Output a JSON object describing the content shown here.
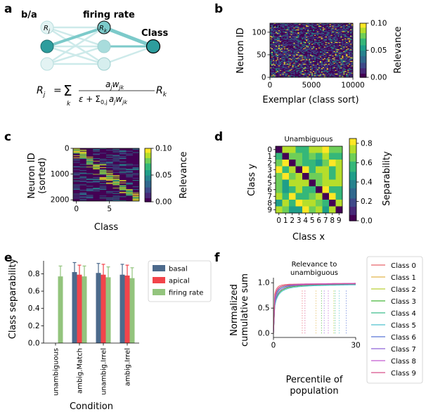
{
  "colors": {
    "basal": "#4c6a8c",
    "apical": "#f2444b",
    "firing": "#93c47d",
    "teal_dark": "#2d9d9d",
    "teal_mid": "#7ccaca",
    "teal_light": "#cdeaea",
    "viridis": [
      "#440154",
      "#482878",
      "#3e4989",
      "#31688e",
      "#26828e",
      "#1f9e89",
      "#35b779",
      "#6ece58",
      "#b5de2b",
      "#fde725"
    ]
  },
  "panel_labels": {
    "a": "a",
    "b": "b",
    "c": "c",
    "d": "d",
    "e": "e",
    "f": "f"
  },
  "diagram": {
    "layer_basal_label": "b/a",
    "layer_rate_label": "firing rate",
    "class_label": "Class",
    "node_rj": "R",
    "node_rj_sub": "j",
    "node_rk": "R",
    "node_rk_sub": "k",
    "equation": {
      "lhs": "R",
      "lhs_sub": "j",
      "eq": "=",
      "sum": "Σ",
      "sum_sub": "k",
      "numerator": "a",
      "numerator_sub": "j",
      "numerator_w": "w",
      "numerator_w_sub": "jk",
      "denominator_eps": "ε +",
      "denominator_sum": "Σ",
      "denominator_sum_sub": "0,j",
      "denominator_a": "a",
      "denominator_a_sub": "j",
      "denominator_w": "w",
      "denominator_w_sub": "jk",
      "rhs": "R",
      "rhs_sub": "k"
    }
  },
  "chart_data": [
    {
      "id": "b",
      "type": "heatmap",
      "title": "",
      "xlabel": "Exemplar (class sort)",
      "ylabel": "Neuron ID",
      "xlim": [
        0,
        10000
      ],
      "ylim": [
        0,
        120
      ],
      "xticks": [
        "0",
        "5000",
        "10000"
      ],
      "yticks": [
        "0",
        "50",
        "100"
      ],
      "ytick_values": [
        0,
        50,
        100
      ],
      "top_note": "...",
      "colorbar": {
        "label": "Relevance",
        "min": 0.0,
        "max": 0.1,
        "ticks": [
          "0.00",
          "0.05",
          "0.10"
        ]
      }
    },
    {
      "id": "c",
      "type": "heatmap",
      "xlabel": "Class",
      "ylabel": "Neuron ID",
      "ylabel2": "(sorted)",
      "xlim": [
        -0.5,
        9.5
      ],
      "ylim": [
        0,
        2048
      ],
      "xticks": [
        "0",
        "5"
      ],
      "xtick_values": [
        0,
        5
      ],
      "yticks": [
        "0",
        "1000",
        "2000"
      ],
      "ytick_values": [
        0,
        1000,
        2000
      ],
      "colorbar": {
        "label": "Relevance",
        "min": 0.0,
        "max": 0.1,
        "ticks": [
          "0.00",
          "0.05",
          "0.10"
        ]
      }
    },
    {
      "id": "d",
      "type": "heatmap",
      "title": "Unambiguous",
      "xlabel": "Class x",
      "ylabel": "Class y",
      "categories": [
        "0",
        "1",
        "2",
        "3",
        "4",
        "5",
        "6",
        "7",
        "8",
        "9"
      ],
      "colorbar": {
        "label": "Separability",
        "min": 0.0,
        "max": 0.85,
        "ticks": [
          "0.0",
          "0.2",
          "0.4",
          "0.6",
          "0.8"
        ],
        "tick_values": [
          0,
          0.2,
          0.4,
          0.6,
          0.8
        ]
      }
    },
    {
      "id": "e",
      "type": "bar",
      "xlabel": "Condition",
      "ylabel": "Class separability",
      "ylim": [
        0,
        0.95
      ],
      "yticks": [
        "0.0",
        "0.2",
        "0.4",
        "0.6",
        "0.8"
      ],
      "ytick_values": [
        0,
        0.2,
        0.4,
        0.6,
        0.8
      ],
      "categories": [
        "unambiguous",
        "ambig.Match",
        "unambig.Irrel",
        "ambig.Irrel"
      ],
      "series": [
        {
          "name": "basal",
          "values": [
            null,
            0.82,
            0.81,
            0.79
          ],
          "errors": [
            null,
            0.11,
            0.11,
            0.12
          ]
        },
        {
          "name": "apical",
          "values": [
            null,
            0.79,
            0.79,
            0.78
          ],
          "errors": [
            null,
            0.11,
            0.12,
            0.12
          ]
        },
        {
          "name": "firing rate",
          "values": [
            0.77,
            0.77,
            0.76,
            0.75
          ],
          "errors": [
            0.12,
            0.12,
            0.12,
            0.12
          ]
        }
      ],
      "legend_position": "right"
    },
    {
      "id": "f",
      "type": "line",
      "title": "Relevance to",
      "title2": "unambiguous",
      "xlabel": "Percentile of",
      "xlabel2": "population",
      "ylabel": "Normalized",
      "ylabel2": "cumulative sum",
      "xlim": [
        0,
        30
      ],
      "ylim": [
        -0.08,
        1.1
      ],
      "xticks": [
        "0",
        "30"
      ],
      "xtick_values": [
        0,
        30
      ],
      "yticks": [
        "0.0",
        "0.5",
        "1.0"
      ],
      "ytick_values": [
        0,
        0.5,
        1.0
      ],
      "legend_position": "right",
      "series": [
        {
          "name": "Class 0",
          "color": "#e8646a",
          "k": 3.2,
          "end": 0.97,
          "mark": 10.5
        },
        {
          "name": "Class 1",
          "color": "#e2b44b",
          "k": 2.0,
          "end": 0.95,
          "mark": 15.5
        },
        {
          "name": "Class 2",
          "color": "#b9cf36",
          "k": 2.6,
          "end": 0.96,
          "mark": 22.0
        },
        {
          "name": "Class 3",
          "color": "#48b83b",
          "k": 1.8,
          "end": 0.95,
          "mark": 17.5
        },
        {
          "name": "Class 4",
          "color": "#3dbd8c",
          "k": 2.4,
          "end": 0.95,
          "mark": 22.5
        },
        {
          "name": "Class 5",
          "color": "#4fc2cf",
          "k": 1.7,
          "end": 0.94,
          "mark": 24.0
        },
        {
          "name": "Class 6",
          "color": "#5a76d6",
          "k": 2.2,
          "end": 0.96,
          "mark": 26.5
        },
        {
          "name": "Class 7",
          "color": "#8f63d6",
          "k": 1.9,
          "end": 0.96,
          "mark": 18.5
        },
        {
          "name": "Class 8",
          "color": "#c45ad0",
          "k": 2.5,
          "end": 0.97,
          "mark": 20.0
        },
        {
          "name": "Class 9",
          "color": "#d8508a",
          "k": 2.8,
          "end": 0.96,
          "mark": 11.5
        }
      ]
    }
  ]
}
